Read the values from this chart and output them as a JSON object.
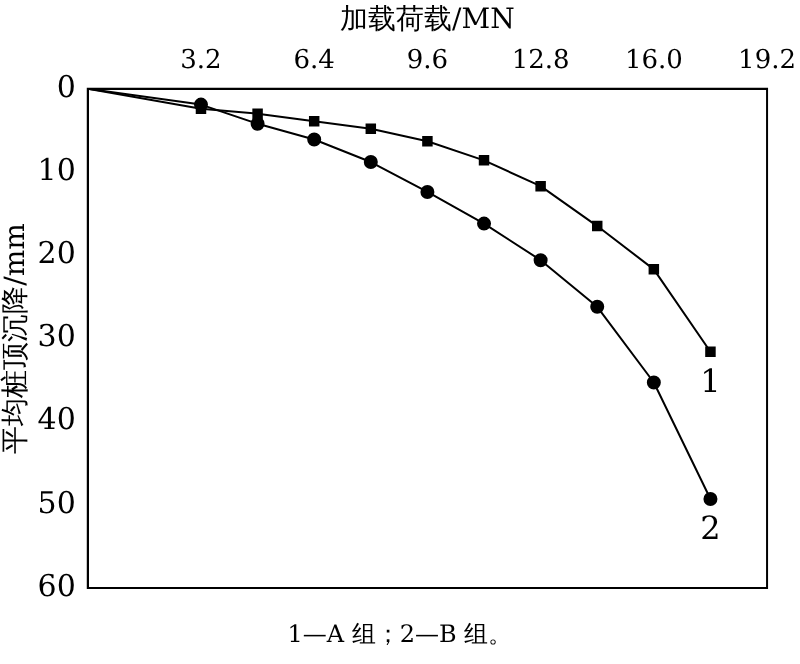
{
  "chart_data": {
    "type": "line",
    "xlabel": "加载荷载/MN",
    "ylabel": "平均桩顶沉降/mm",
    "x": [
      0,
      3.2,
      4.8,
      6.4,
      8.0,
      9.6,
      11.2,
      12.8,
      14.4,
      16.0,
      17.6
    ],
    "series": [
      {
        "name": "1",
        "color": "#000000",
        "marker": "square",
        "values": [
          0,
          2.4,
          3.0,
          3.9,
          4.8,
          6.3,
          8.6,
          11.7,
          16.5,
          21.7,
          31.6
        ]
      },
      {
        "name": "2",
        "color": "#000000",
        "marker": "circle",
        "values": [
          0,
          1.9,
          4.2,
          6.1,
          8.8,
          12.4,
          16.2,
          20.6,
          26.2,
          35.3,
          49.3
        ]
      }
    ],
    "xlim": [
      0,
      19.2
    ],
    "xticks": [
      3.2,
      6.4,
      9.6,
      12.8,
      {
        "value": 16,
        "label": "16.0"
      },
      19.2
    ],
    "ylim": [
      60,
      0
    ],
    "yticks": [
      0,
      10,
      20,
      30,
      40,
      50,
      60
    ],
    "grid": false,
    "legend": false,
    "line_style": "solid",
    "annotations": [
      "1—A 组；2—B 组。"
    ]
  }
}
